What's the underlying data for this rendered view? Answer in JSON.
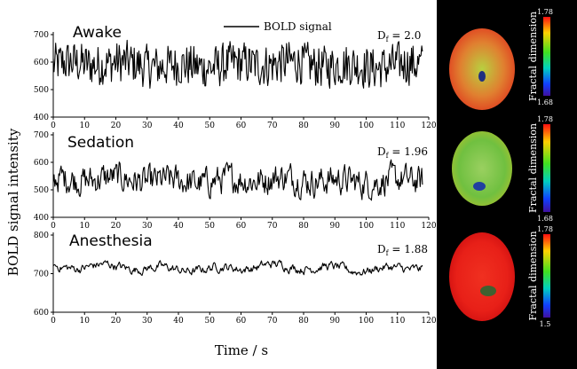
{
  "chart_data": {
    "type": "line",
    "legend": {
      "label": "BOLD signal",
      "placement": "top-center"
    },
    "ylabel": "BOLD signal intensity",
    "xlabel": "Time / s",
    "x_ticks": [
      0,
      10,
      20,
      30,
      40,
      50,
      60,
      70,
      80,
      90,
      100,
      110,
      120
    ],
    "xlim": [
      0,
      120
    ],
    "panels": [
      {
        "name": "Awake",
        "df_label": "D",
        "df_sub": "f",
        "df_value": " = 2.0",
        "ylim": [
          400,
          700
        ],
        "y_ticks": [
          400,
          500,
          600,
          700
        ],
        "signal": {
          "mean": 590,
          "amplitude": 55,
          "smooth": 0.15
        },
        "x_range": [
          0,
          118
        ]
      },
      {
        "name": "Sedation",
        "df_label": "D",
        "df_sub": "f",
        "df_value": " = 1.96",
        "ylim": [
          400,
          700
        ],
        "y_ticks": [
          400,
          500,
          600,
          700
        ],
        "signal": {
          "mean": 535,
          "amplitude": 55,
          "smooth": 0.5
        },
        "x_range": [
          0,
          118
        ]
      },
      {
        "name": "Anesthesia",
        "df_label": "D",
        "df_sub": "f",
        "df_value": " = 1.88",
        "ylim": [
          600,
          800
        ],
        "y_ticks": [
          600,
          700,
          800
        ],
        "signal": {
          "mean": 715,
          "amplitude": 18,
          "smooth": 0.7
        },
        "x_range": [
          0,
          118
        ]
      }
    ],
    "colorbars": [
      {
        "label": "Fractal dimension",
        "max": "1.78",
        "min": "1.68"
      },
      {
        "label": "Fractal dimension",
        "max": "1.78",
        "min": "1.68"
      },
      {
        "label": "Fractal dimension",
        "max": "1.78",
        "min": "1.5"
      }
    ]
  },
  "colors": {
    "background_right": "#000000",
    "trace": "#000000"
  }
}
